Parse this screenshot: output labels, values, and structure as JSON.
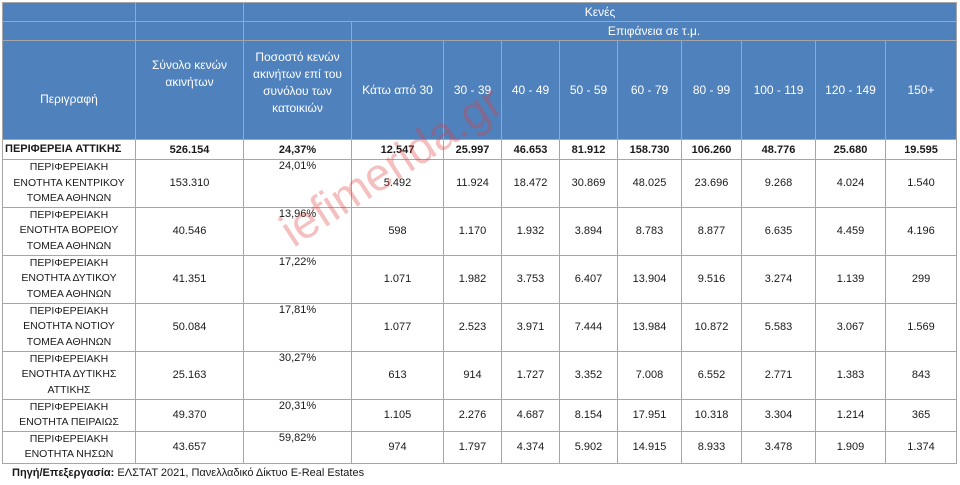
{
  "header": {
    "group_empty": "Κενές",
    "group_area": "Επιφάνεια σε τ.μ.",
    "col_description": "Περιγραφή",
    "col_total": "Σύνολο κενών ακινήτων",
    "col_percent": "Ποσοστό κενών ακινήτων επί του συνόλου των κατοικιών",
    "area_bins": [
      "Κάτω από 30",
      "30 - 39",
      "40 - 49",
      "50 - 59",
      "60 - 79",
      "80 - 99",
      "100 - 119",
      "120 - 149",
      "150+"
    ]
  },
  "rows": [
    {
      "label": "ΠΕΡΙΦΕΡΕΙΑ ΑΤΤΙΚΗΣ",
      "total": "526.154",
      "percent": "24,37%",
      "values": [
        "12.547",
        "25.997",
        "46.653",
        "81.912",
        "158.730",
        "106.260",
        "48.776",
        "25.680",
        "19.595"
      ]
    },
    {
      "label": "ΠΕΡΙΦΕΡΕΙΑΚΗ ΕΝΟΤΗΤΑ ΚΕΝΤΡΙΚΟΥ ΤΟΜΕΑ ΑΘΗΝΩΝ",
      "total": "153.310",
      "percent": "24,01%",
      "values": [
        "5.492",
        "11.924",
        "18.472",
        "30.869",
        "48.025",
        "23.696",
        "9.268",
        "4.024",
        "1.540"
      ]
    },
    {
      "label": "ΠΕΡΙΦΕΡΕΙΑΚΗ ΕΝΟΤΗΤΑ ΒΟΡΕΙΟΥ ΤΟΜΕΑ ΑΘΗΝΩΝ",
      "total": "40.546",
      "percent": "13,96%",
      "values": [
        "598",
        "1.170",
        "1.932",
        "3.894",
        "8.783",
        "8.877",
        "6.635",
        "4.459",
        "4.196"
      ]
    },
    {
      "label": "ΠΕΡΙΦΕΡΕΙΑΚΗ ΕΝΟΤΗΤΑ ΔΥΤΙΚΟΥ ΤΟΜΕΑ ΑΘΗΝΩΝ",
      "total": "41.351",
      "percent": "17,22%",
      "values": [
        "1.071",
        "1.982",
        "3.753",
        "6.407",
        "13.904",
        "9.516",
        "3.274",
        "1.139",
        "299"
      ]
    },
    {
      "label": "ΠΕΡΙΦΕΡΕΙΑΚΗ ΕΝΟΤΗΤΑ ΝΟΤΙΟΥ ΤΟΜΕΑ ΑΘΗΝΩΝ",
      "total": "50.084",
      "percent": "17,81%",
      "values": [
        "1.077",
        "2.523",
        "3.971",
        "7.444",
        "13.984",
        "10.872",
        "5.583",
        "3.067",
        "1.569"
      ]
    },
    {
      "label": "ΠΕΡΙΦΕΡΕΙΑΚΗ ΕΝΟΤΗΤΑ ΔΥΤΙΚΗΣ ΑΤΤΙΚΗΣ",
      "total": "25.163",
      "percent": "30,27%",
      "values": [
        "613",
        "914",
        "1.727",
        "3.352",
        "7.008",
        "6.552",
        "2.771",
        "1.383",
        "843"
      ]
    },
    {
      "label": "ΠΕΡΙΦΕΡΕΙΑΚΗ ΕΝΟΤΗΤΑ ΠΕΙΡΑΙΩΣ",
      "total": "49.370",
      "percent": "20,31%",
      "values": [
        "1.105",
        "2.276",
        "4.687",
        "8.154",
        "17.951",
        "10.318",
        "3.304",
        "1.214",
        "365"
      ]
    },
    {
      "label": "ΠΕΡΙΦΕΡΕΙΑΚΗ ΕΝΟΤΗΤΑ ΝΗΣΩΝ",
      "total": "43.657",
      "percent": "59,82%",
      "values": [
        "974",
        "1.797",
        "4.374",
        "5.902",
        "14.915",
        "8.933",
        "3.478",
        "1.909",
        "1.374"
      ]
    }
  ],
  "source": {
    "prefix": "Πηγή/Επεξεργασία:",
    "text": " ΕΛΣΤΑΤ 2021, Πανελλαδικό Δίκτυο E-Real Estates"
  },
  "watermark": "iefimerida.gr",
  "colors": {
    "header_bg": "#4f81bd",
    "header_text": "#ffffff",
    "grid": "#a6a6a6"
  }
}
